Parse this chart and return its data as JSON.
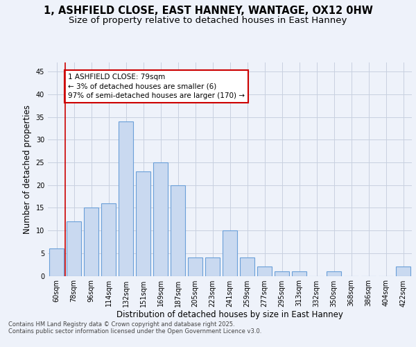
{
  "title_line1": "1, ASHFIELD CLOSE, EAST HANNEY, WANTAGE, OX12 0HW",
  "title_line2": "Size of property relative to detached houses in East Hanney",
  "xlabel": "Distribution of detached houses by size in East Hanney",
  "ylabel": "Number of detached properties",
  "categories": [
    "60sqm",
    "78sqm",
    "96sqm",
    "114sqm",
    "132sqm",
    "151sqm",
    "169sqm",
    "187sqm",
    "205sqm",
    "223sqm",
    "241sqm",
    "259sqm",
    "277sqm",
    "295sqm",
    "313sqm",
    "332sqm",
    "350sqm",
    "368sqm",
    "386sqm",
    "404sqm",
    "422sqm"
  ],
  "values": [
    6,
    12,
    15,
    16,
    34,
    23,
    25,
    20,
    4,
    4,
    10,
    4,
    2,
    1,
    1,
    0,
    1,
    0,
    0,
    0,
    2
  ],
  "bar_color": "#c9d9f0",
  "bar_edge_color": "#6a9fd8",
  "bar_edge_width": 0.8,
  "vline_color": "#cc0000",
  "vline_x_index": 1,
  "annotation_text": "1 ASHFIELD CLOSE: 79sqm\n← 3% of detached houses are smaller (6)\n97% of semi-detached houses are larger (170) →",
  "annotation_box_color": "#ffffff",
  "annotation_box_edge_color": "#cc0000",
  "ylim": [
    0,
    47
  ],
  "yticks": [
    0,
    5,
    10,
    15,
    20,
    25,
    30,
    35,
    40,
    45
  ],
  "background_color": "#eef2fa",
  "grid_color": "#c8d0e0",
  "footer_text": "Contains HM Land Registry data © Crown copyright and database right 2025.\nContains public sector information licensed under the Open Government Licence v3.0.",
  "title_fontsize": 10.5,
  "subtitle_fontsize": 9.5,
  "axis_label_fontsize": 8.5,
  "tick_fontsize": 7,
  "annotation_fontsize": 7.5,
  "footer_fontsize": 6
}
